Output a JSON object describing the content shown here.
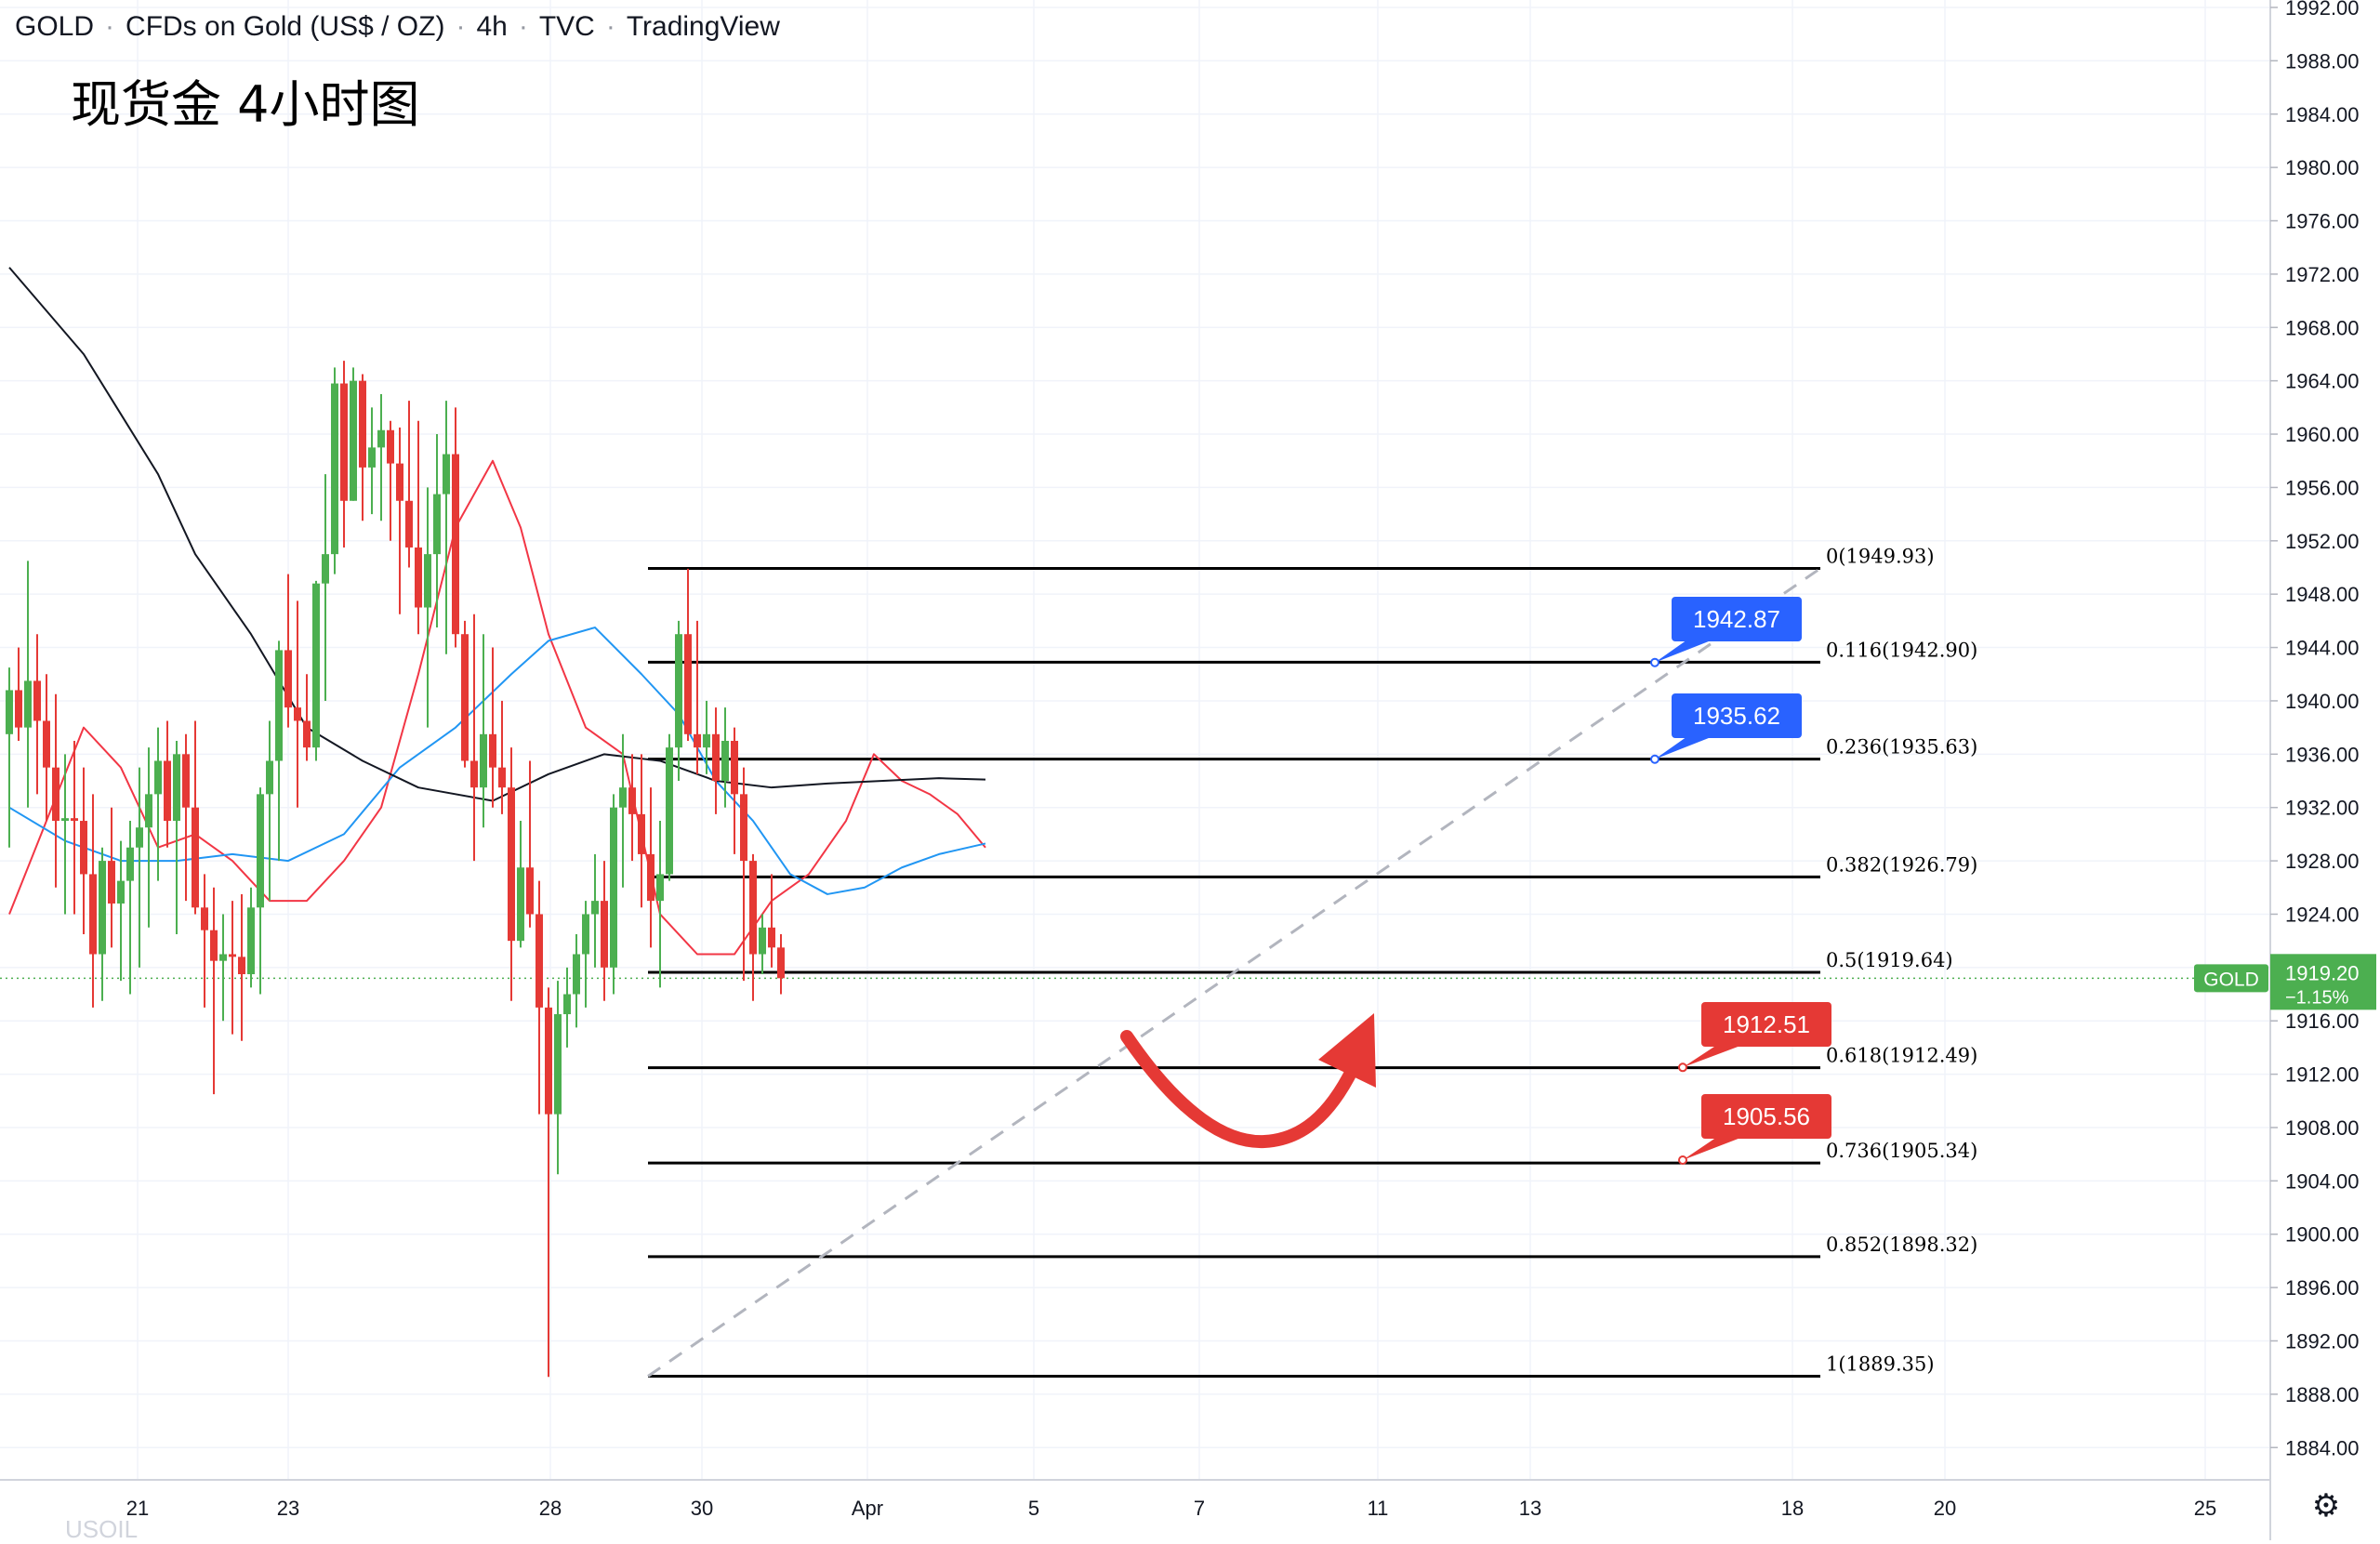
{
  "header": {
    "symbol": "GOLD",
    "description": "CFDs on Gold (US$ / OZ)",
    "interval": "4h",
    "source": "TVC",
    "platform": "TradingView"
  },
  "subtitle": "现货金 4小时图",
  "watermark": "USOIL",
  "price_axis": {
    "ticks": [
      "1992.00",
      "1988.00",
      "1984.00",
      "1980.00",
      "1976.00",
      "1972.00",
      "1968.00",
      "1964.00",
      "1960.00",
      "1956.00",
      "1952.00",
      "1948.00",
      "1944.00",
      "1940.00",
      "1936.00",
      "1932.00",
      "1928.00",
      "1924.00",
      "1920.00",
      "1916.00",
      "1912.00",
      "1908.00",
      "1904.00",
      "1900.00",
      "1896.00",
      "1892.00",
      "1888.00",
      "1884.00"
    ],
    "last_price_symbol": "GOLD",
    "last_price": "1919.20",
    "last_change": "−1.15%"
  },
  "time_axis": {
    "labels": [
      "21",
      "23",
      "28",
      "30",
      "Apr",
      "5",
      "7",
      "11",
      "13",
      "18",
      "20",
      "25"
    ]
  },
  "colors": {
    "up": "#4caf50",
    "down": "#e53935",
    "ma_fast": "#f23645",
    "ma_mid": "#2196f3",
    "ma_slow": "#131722",
    "badge_blue": "#2962ff",
    "badge_red": "#e53935",
    "price_badge": "#4caf50"
  },
  "chart_data": {
    "type": "candlestick",
    "instrument": "GOLD",
    "interval": "4h",
    "ylim": [
      1882,
      1994
    ],
    "candles": [
      {
        "o": 1937.5,
        "h": 1942.5,
        "l": 1929.0,
        "c": 1940.8
      },
      {
        "o": 1940.8,
        "h": 1944.0,
        "l": 1937.0,
        "c": 1938.0
      },
      {
        "o": 1938.0,
        "h": 1950.5,
        "l": 1932.0,
        "c": 1941.5
      },
      {
        "o": 1941.5,
        "h": 1945.0,
        "l": 1933.0,
        "c": 1938.5
      },
      {
        "o": 1938.5,
        "h": 1942.0,
        "l": 1931.0,
        "c": 1935.0
      },
      {
        "o": 1935.0,
        "h": 1940.5,
        "l": 1926.0,
        "c": 1931.0
      },
      {
        "o": 1931.0,
        "h": 1936.0,
        "l": 1924.0,
        "c": 1931.2
      },
      {
        "o": 1931.2,
        "h": 1937.0,
        "l": 1924.0,
        "c": 1931.0
      },
      {
        "o": 1931.0,
        "h": 1935.0,
        "l": 1922.5,
        "c": 1927.0
      },
      {
        "o": 1927.0,
        "h": 1933.0,
        "l": 1917.0,
        "c": 1921.0
      },
      {
        "o": 1921.0,
        "h": 1929.0,
        "l": 1917.5,
        "c": 1928.0
      },
      {
        "o": 1928.0,
        "h": 1932.0,
        "l": 1921.5,
        "c": 1924.8
      },
      {
        "o": 1924.8,
        "h": 1929.5,
        "l": 1919.0,
        "c": 1926.5
      },
      {
        "o": 1926.5,
        "h": 1931.0,
        "l": 1918.0,
        "c": 1929.0
      },
      {
        "o": 1929.0,
        "h": 1935.0,
        "l": 1920.0,
        "c": 1930.5
      },
      {
        "o": 1930.5,
        "h": 1936.5,
        "l": 1923.0,
        "c": 1933.0
      },
      {
        "o": 1933.0,
        "h": 1938.0,
        "l": 1926.5,
        "c": 1935.5
      },
      {
        "o": 1935.5,
        "h": 1938.5,
        "l": 1929.0,
        "c": 1931.0
      },
      {
        "o": 1931.0,
        "h": 1937.0,
        "l": 1922.5,
        "c": 1936.0
      },
      {
        "o": 1936.0,
        "h": 1937.5,
        "l": 1925.0,
        "c": 1932.0
      },
      {
        "o": 1932.0,
        "h": 1938.5,
        "l": 1924.0,
        "c": 1924.5
      },
      {
        "o": 1924.5,
        "h": 1927.0,
        "l": 1917.0,
        "c": 1922.8
      },
      {
        "o": 1922.8,
        "h": 1926.0,
        "l": 1910.5,
        "c": 1920.5
      },
      {
        "o": 1920.5,
        "h": 1924.0,
        "l": 1916.0,
        "c": 1921.0
      },
      {
        "o": 1921.0,
        "h": 1925.0,
        "l": 1915.0,
        "c": 1920.8
      },
      {
        "o": 1920.8,
        "h": 1925.5,
        "l": 1914.5,
        "c": 1919.5
      },
      {
        "o": 1919.5,
        "h": 1926.0,
        "l": 1918.5,
        "c": 1924.5
      },
      {
        "o": 1924.5,
        "h": 1933.5,
        "l": 1918.0,
        "c": 1933.0
      },
      {
        "o": 1933.0,
        "h": 1938.5,
        "l": 1925.0,
        "c": 1935.5
      },
      {
        "o": 1935.5,
        "h": 1944.5,
        "l": 1928.0,
        "c": 1943.8
      },
      {
        "o": 1943.8,
        "h": 1949.5,
        "l": 1938.0,
        "c": 1939.5
      },
      {
        "o": 1939.5,
        "h": 1947.5,
        "l": 1932.0,
        "c": 1938.5
      },
      {
        "o": 1938.5,
        "h": 1942.0,
        "l": 1935.5,
        "c": 1936.5
      },
      {
        "o": 1936.5,
        "h": 1949.0,
        "l": 1935.5,
        "c": 1948.8
      },
      {
        "o": 1948.8,
        "h": 1957.0,
        "l": 1940.0,
        "c": 1951.0
      },
      {
        "o": 1951.0,
        "h": 1965.0,
        "l": 1949.5,
        "c": 1963.8
      },
      {
        "o": 1963.8,
        "h": 1965.5,
        "l": 1951.5,
        "c": 1955.0
      },
      {
        "o": 1955.0,
        "h": 1965.0,
        "l": 1955.0,
        "c": 1964.0
      },
      {
        "o": 1964.0,
        "h": 1964.5,
        "l": 1953.5,
        "c": 1957.5
      },
      {
        "o": 1957.5,
        "h": 1962.0,
        "l": 1954.0,
        "c": 1959.0
      },
      {
        "o": 1959.0,
        "h": 1963.0,
        "l": 1953.5,
        "c": 1960.3
      },
      {
        "o": 1960.3,
        "h": 1961.0,
        "l": 1952.0,
        "c": 1957.8
      },
      {
        "o": 1957.8,
        "h": 1960.5,
        "l": 1946.5,
        "c": 1955.0
      },
      {
        "o": 1955.0,
        "h": 1962.5,
        "l": 1950.0,
        "c": 1951.5
      },
      {
        "o": 1951.5,
        "h": 1961.0,
        "l": 1945.0,
        "c": 1947.0
      },
      {
        "o": 1947.0,
        "h": 1956.0,
        "l": 1938.0,
        "c": 1951.0
      },
      {
        "o": 1951.0,
        "h": 1960.0,
        "l": 1945.5,
        "c": 1955.5
      },
      {
        "o": 1955.5,
        "h": 1962.5,
        "l": 1943.5,
        "c": 1958.5
      },
      {
        "o": 1958.5,
        "h": 1962.0,
        "l": 1944.0,
        "c": 1945.0
      },
      {
        "o": 1945.0,
        "h": 1946.0,
        "l": 1935.0,
        "c": 1935.5
      },
      {
        "o": 1935.5,
        "h": 1946.5,
        "l": 1928.0,
        "c": 1933.5
      },
      {
        "o": 1933.5,
        "h": 1945.0,
        "l": 1930.5,
        "c": 1937.5
      },
      {
        "o": 1937.5,
        "h": 1944.0,
        "l": 1932.0,
        "c": 1935.0
      },
      {
        "o": 1935.0,
        "h": 1940.0,
        "l": 1931.5,
        "c": 1933.5
      },
      {
        "o": 1933.5,
        "h": 1936.5,
        "l": 1917.5,
        "c": 1922.0
      },
      {
        "o": 1922.0,
        "h": 1931.0,
        "l": 1921.5,
        "c": 1927.5
      },
      {
        "o": 1927.5,
        "h": 1935.5,
        "l": 1923.0,
        "c": 1924.0
      },
      {
        "o": 1924.0,
        "h": 1926.5,
        "l": 1909.0,
        "c": 1917.0
      },
      {
        "o": 1917.0,
        "h": 1918.5,
        "l": 1889.3,
        "c": 1909.0
      },
      {
        "o": 1909.0,
        "h": 1919.0,
        "l": 1904.5,
        "c": 1916.5
      },
      {
        "o": 1916.5,
        "h": 1920.0,
        "l": 1914.0,
        "c": 1918.0
      },
      {
        "o": 1918.0,
        "h": 1922.5,
        "l": 1915.5,
        "c": 1921.0
      },
      {
        "o": 1921.0,
        "h": 1925.0,
        "l": 1917.0,
        "c": 1924.0
      },
      {
        "o": 1924.0,
        "h": 1928.5,
        "l": 1920.0,
        "c": 1925.0
      },
      {
        "o": 1925.0,
        "h": 1928.0,
        "l": 1917.5,
        "c": 1920.0
      },
      {
        "o": 1920.0,
        "h": 1933.0,
        "l": 1918.0,
        "c": 1932.0
      },
      {
        "o": 1932.0,
        "h": 1937.5,
        "l": 1926.0,
        "c": 1933.5
      },
      {
        "o": 1933.5,
        "h": 1936.0,
        "l": 1928.0,
        "c": 1931.5
      },
      {
        "o": 1931.5,
        "h": 1936.0,
        "l": 1924.5,
        "c": 1928.5
      },
      {
        "o": 1928.5,
        "h": 1933.5,
        "l": 1921.5,
        "c": 1925.0
      },
      {
        "o": 1925.0,
        "h": 1931.0,
        "l": 1918.5,
        "c": 1927.0
      },
      {
        "o": 1927.0,
        "h": 1937.5,
        "l": 1926.5,
        "c": 1936.5
      },
      {
        "o": 1936.5,
        "h": 1946.0,
        "l": 1934.0,
        "c": 1945.0
      },
      {
        "o": 1945.0,
        "h": 1949.9,
        "l": 1937.0,
        "c": 1937.5
      },
      {
        "o": 1937.5,
        "h": 1946.0,
        "l": 1934.5,
        "c": 1936.5
      },
      {
        "o": 1936.5,
        "h": 1940.0,
        "l": 1934.5,
        "c": 1937.5
      },
      {
        "o": 1937.5,
        "h": 1939.5,
        "l": 1931.5,
        "c": 1934.0
      },
      {
        "o": 1934.0,
        "h": 1939.5,
        "l": 1932.0,
        "c": 1937.0
      },
      {
        "o": 1937.0,
        "h": 1938.0,
        "l": 1928.5,
        "c": 1933.0
      },
      {
        "o": 1933.0,
        "h": 1935.0,
        "l": 1919.0,
        "c": 1928.0
      },
      {
        "o": 1928.0,
        "h": 1928.5,
        "l": 1917.5,
        "c": 1921.0
      },
      {
        "o": 1921.0,
        "h": 1924.0,
        "l": 1919.5,
        "c": 1923.0
      },
      {
        "o": 1923.0,
        "h": 1927.0,
        "l": 1920.0,
        "c": 1921.5
      },
      {
        "o": 1921.5,
        "h": 1922.5,
        "l": 1918.0,
        "c": 1919.2
      }
    ],
    "moving_averages": [
      {
        "color_key": "ma_fast",
        "values": [
          [
            0,
            1924
          ],
          [
            4,
            1931
          ],
          [
            8,
            1938
          ],
          [
            12,
            1935
          ],
          [
            16,
            1929
          ],
          [
            20,
            1930
          ],
          [
            24,
            1928
          ],
          [
            28,
            1925
          ],
          [
            32,
            1925
          ],
          [
            36,
            1928
          ],
          [
            40,
            1932
          ],
          [
            44,
            1942
          ],
          [
            48,
            1953
          ],
          [
            52,
            1958
          ],
          [
            55,
            1953
          ],
          [
            58,
            1945
          ],
          [
            62,
            1938
          ],
          [
            66,
            1936
          ],
          [
            70,
            1924
          ],
          [
            74,
            1921
          ],
          [
            78,
            1921
          ],
          [
            82,
            1925
          ],
          [
            86,
            1927
          ],
          [
            90,
            1931
          ],
          [
            93,
            1936
          ],
          [
            96,
            1934
          ],
          [
            99,
            1933
          ],
          [
            102,
            1931.5
          ],
          [
            105,
            1929
          ]
        ]
      },
      {
        "color_key": "ma_mid",
        "values": [
          [
            0,
            1932
          ],
          [
            6,
            1929.5
          ],
          [
            12,
            1928
          ],
          [
            18,
            1928
          ],
          [
            24,
            1928.5
          ],
          [
            30,
            1928
          ],
          [
            36,
            1930
          ],
          [
            42,
            1935
          ],
          [
            48,
            1938
          ],
          [
            54,
            1942
          ],
          [
            58,
            1944.5
          ],
          [
            63,
            1945.5
          ],
          [
            68,
            1942
          ],
          [
            72,
            1939
          ],
          [
            76,
            1934
          ],
          [
            80,
            1931
          ],
          [
            84,
            1927
          ],
          [
            88,
            1925.5
          ],
          [
            92,
            1926
          ],
          [
            96,
            1927.5
          ],
          [
            100,
            1928.5
          ],
          [
            105,
            1929.3
          ]
        ]
      },
      {
        "color_key": "ma_slow",
        "values": [
          [
            0,
            1972.5
          ],
          [
            8,
            1966
          ],
          [
            16,
            1957
          ],
          [
            20,
            1951
          ],
          [
            26,
            1945
          ],
          [
            32,
            1938
          ],
          [
            38,
            1935.5
          ],
          [
            44,
            1933.5
          ],
          [
            52,
            1932.5
          ],
          [
            58,
            1934.5
          ],
          [
            64,
            1936
          ],
          [
            70,
            1935.5
          ],
          [
            76,
            1934
          ],
          [
            82,
            1933.5
          ],
          [
            88,
            1933.8
          ],
          [
            94,
            1934
          ],
          [
            100,
            1934.2
          ],
          [
            105,
            1934.1
          ]
        ]
      }
    ],
    "fibonacci": {
      "from": 1949.93,
      "to": 1889.35,
      "levels": [
        {
          "ratio": "0",
          "price": 1949.93,
          "label": "0(1949.93)"
        },
        {
          "ratio": "0.116",
          "price": 1942.9,
          "label": "0.116(1942.90)"
        },
        {
          "ratio": "0.236",
          "price": 1935.63,
          "label": "0.236(1935.63)"
        },
        {
          "ratio": "0.382",
          "price": 1926.79,
          "label": "0.382(1926.79)"
        },
        {
          "ratio": "0.5",
          "price": 1919.64,
          "label": "0.5(1919.64)"
        },
        {
          "ratio": "0.618",
          "price": 1912.49,
          "label": "0.618(1912.49)"
        },
        {
          "ratio": "0.736",
          "price": 1905.34,
          "label": "0.736(1905.34)"
        },
        {
          "ratio": "0.852",
          "price": 1898.32,
          "label": "0.852(1898.32)"
        },
        {
          "ratio": "1",
          "price": 1889.35,
          "label": "1(1889.35)"
        }
      ]
    },
    "price_callouts": [
      {
        "label": "1942.87",
        "price": 1942.87,
        "color_key": "badge_blue"
      },
      {
        "label": "1935.62",
        "price": 1935.62,
        "color_key": "badge_blue"
      },
      {
        "label": "1912.51",
        "price": 1912.51,
        "color_key": "badge_red"
      },
      {
        "label": "1905.56",
        "price": 1905.56,
        "color_key": "badge_red"
      }
    ],
    "last_price": 1919.2,
    "grid": true,
    "annotations": [
      "curved red arrow indicating bounce from 0.618 level"
    ]
  }
}
